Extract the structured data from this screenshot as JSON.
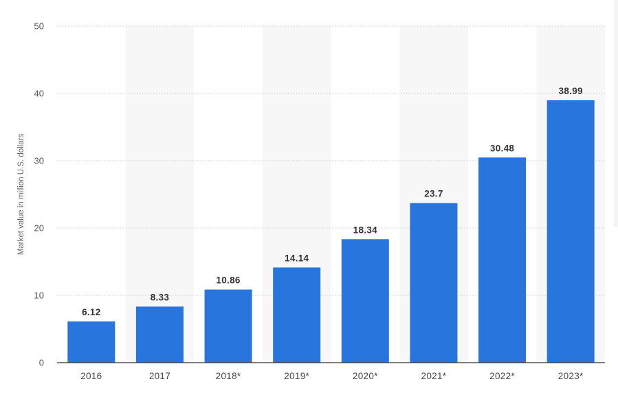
{
  "chart_data": {
    "type": "bar",
    "categories": [
      "2016",
      "2017",
      "2018*",
      "2019*",
      "2020*",
      "2021*",
      "2022*",
      "2023*"
    ],
    "values": [
      6.12,
      8.33,
      10.86,
      14.14,
      18.34,
      23.7,
      30.48,
      38.99
    ],
    "data_labels": [
      "6.12",
      "8.33",
      "10.86",
      "14.14",
      "18.34",
      "23.7",
      "30.48",
      "38.99"
    ],
    "ylabel": "Market value in million U.S. dollars",
    "xlabel": "",
    "ylim": [
      0,
      50
    ],
    "yticks": [
      0,
      10,
      20,
      30,
      40,
      50
    ],
    "grid": true,
    "bar_color": "#2876dd",
    "band_color": "#f7f7f7",
    "legend": "none"
  }
}
